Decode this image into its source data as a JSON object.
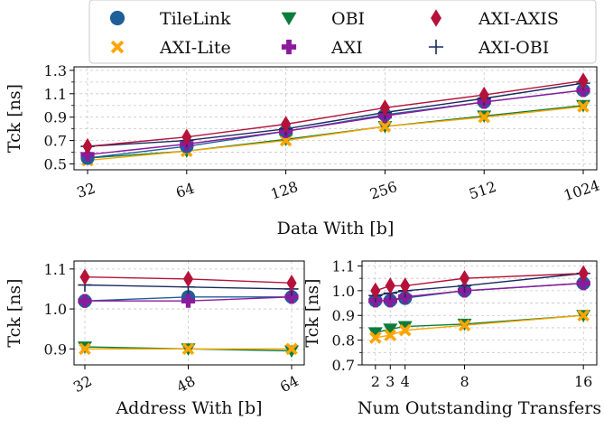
{
  "figure": {
    "colors": {
      "TileLink": "#1f5f99",
      "AXI-Lite": "#ffa500",
      "OBI": "#0a7d3c",
      "AXI": "#8b1a9c",
      "AXI-AXIS": "#b5123a",
      "AXI-OBI": "#1a2a5e"
    },
    "legend": {
      "placement": "top-center",
      "entries": [
        {
          "name": "TileLink",
          "marker": "circle"
        },
        {
          "name": "AXI-Lite",
          "marker": "x-cross"
        },
        {
          "name": "OBI",
          "marker": "triangle-down"
        },
        {
          "name": "AXI",
          "marker": "plus-thick"
        },
        {
          "name": "AXI-AXIS",
          "marker": "diamond"
        },
        {
          "name": "AXI-OBI",
          "marker": "plus-thin"
        }
      ]
    }
  },
  "chart_data": [
    {
      "type": "line",
      "xlabel": "Data With [b]",
      "ylabel": "Tck [ns]",
      "x_scale": "log2",
      "categories": [
        "32",
        "64",
        "128",
        "256",
        "512",
        "1024"
      ],
      "x": [
        32,
        64,
        128,
        256,
        512,
        1024
      ],
      "ylim": [
        0.45,
        1.33
      ],
      "yticks": [
        0.5,
        0.7,
        0.9,
        1.1,
        1.3
      ],
      "yticks_minor": [
        0.6,
        0.8,
        1.0,
        1.2
      ],
      "grid": true,
      "series": [
        {
          "name": "TileLink",
          "values": [
            0.55,
            0.65,
            0.78,
            0.92,
            1.03,
            1.13
          ]
        },
        {
          "name": "AXI-Lite",
          "values": [
            0.53,
            0.61,
            0.7,
            0.82,
            0.9,
            0.99
          ]
        },
        {
          "name": "OBI",
          "values": [
            0.55,
            0.61,
            0.71,
            0.82,
            0.91,
            1.0
          ]
        },
        {
          "name": "AXI",
          "values": [
            0.58,
            0.67,
            0.78,
            0.91,
            1.03,
            1.13
          ]
        },
        {
          "name": "AXI-AXIS",
          "values": [
            0.65,
            0.73,
            0.84,
            0.98,
            1.09,
            1.21
          ]
        },
        {
          "name": "AXI-OBI",
          "values": [
            0.65,
            0.7,
            0.8,
            0.94,
            1.06,
            1.19
          ]
        }
      ]
    },
    {
      "type": "line",
      "xlabel": "Address With [b]",
      "ylabel": "Tck [ns]",
      "categories": [
        "32",
        "48",
        "64"
      ],
      "x": [
        32,
        48,
        64
      ],
      "ylim": [
        0.86,
        1.12
      ],
      "yticks": [
        0.9,
        1.0,
        1.1
      ],
      "grid": true,
      "series": [
        {
          "name": "TileLink",
          "values": [
            1.02,
            1.03,
            1.03
          ]
        },
        {
          "name": "AXI-Lite",
          "values": [
            0.9,
            0.9,
            0.9
          ]
        },
        {
          "name": "OBI",
          "values": [
            0.905,
            0.9,
            0.895
          ]
        },
        {
          "name": "AXI",
          "values": [
            1.02,
            1.02,
            1.03
          ]
        },
        {
          "name": "AXI-AXIS",
          "values": [
            1.08,
            1.075,
            1.065
          ]
        },
        {
          "name": "AXI-OBI",
          "values": [
            1.06,
            1.055,
            1.05
          ]
        }
      ]
    },
    {
      "type": "line",
      "xlabel": "Num Outstanding Transfers",
      "ylabel": "Tck [ns]",
      "categories": [
        "2",
        "3",
        "4",
        "8",
        "16"
      ],
      "x": [
        2,
        3,
        4,
        8,
        16
      ],
      "ylim": [
        0.7,
        1.12
      ],
      "yticks": [
        0.7,
        0.8,
        0.9,
        1.0,
        1.1
      ],
      "yticks_minor": [
        0.75,
        0.85,
        0.95,
        1.05
      ],
      "grid": true,
      "series": [
        {
          "name": "TileLink",
          "values": [
            0.96,
            0.96,
            0.97,
            1.0,
            1.03
          ]
        },
        {
          "name": "AXI-Lite",
          "values": [
            0.81,
            0.82,
            0.84,
            0.86,
            0.9
          ]
        },
        {
          "name": "OBI",
          "values": [
            0.83,
            0.845,
            0.855,
            0.865,
            0.9
          ]
        },
        {
          "name": "AXI",
          "values": [
            0.96,
            0.96,
            0.975,
            1.0,
            1.03
          ]
        },
        {
          "name": "AXI-AXIS",
          "values": [
            1.0,
            1.02,
            1.02,
            1.05,
            1.07
          ]
        },
        {
          "name": "AXI-OBI",
          "values": [
            0.98,
            0.99,
            1.0,
            1.02,
            1.07
          ]
        }
      ]
    }
  ]
}
